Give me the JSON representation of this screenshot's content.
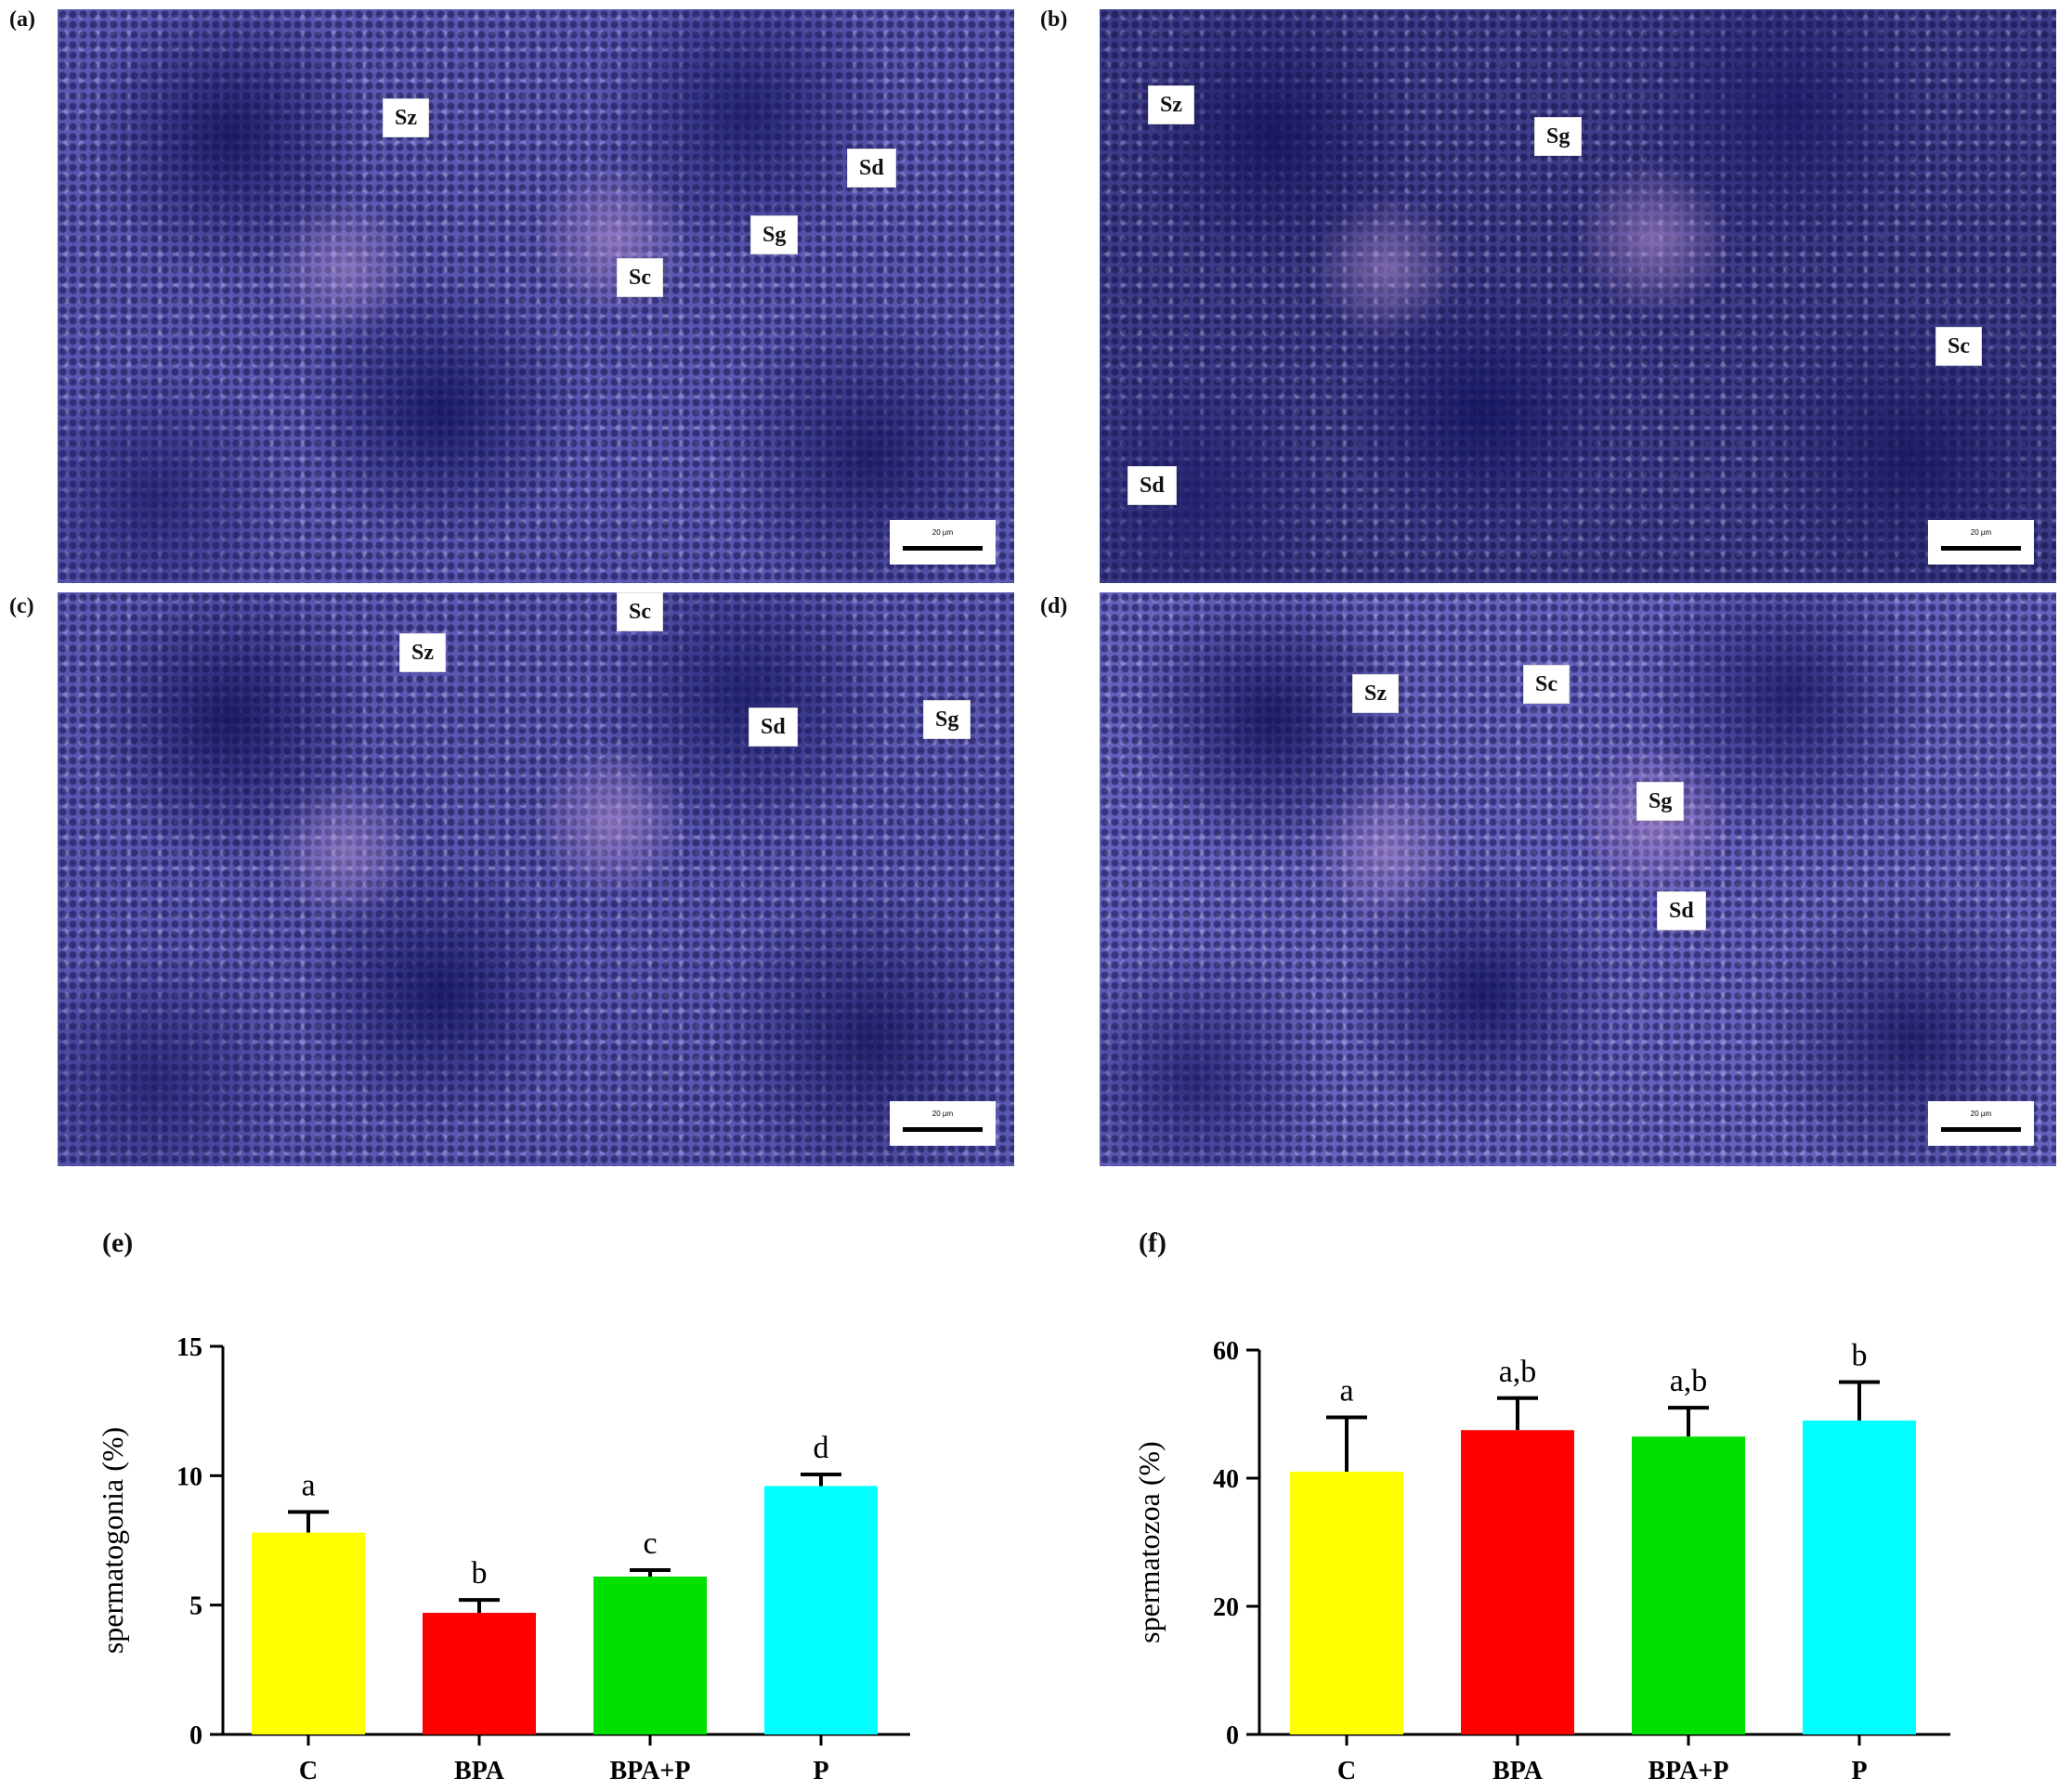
{
  "panels": [
    {
      "letter": "(a)",
      "labels": [
        "Sz",
        "Sd",
        "Sg",
        "Sc"
      ],
      "scale": "20 µm"
    },
    {
      "letter": "(b)",
      "labels": [
        "Sz",
        "Sg",
        "Sc",
        "Sd"
      ],
      "scale": "20 µm"
    },
    {
      "letter": "(c)",
      "labels": [
        "Sc",
        "Sz",
        "Sd",
        "Sg"
      ],
      "scale": "20 µm"
    },
    {
      "letter": "(d)",
      "labels": [
        "Sz",
        "Sc",
        "Sg",
        "Sd"
      ],
      "scale": "20 µm"
    }
  ],
  "chart_letters": {
    "e": "(e)",
    "f": "(f)"
  },
  "colors": {
    "C": "#ffff00",
    "BPA": "#ff0000",
    "BPA+P": "#00e000",
    "P": "#00ffff"
  },
  "chart_data": [
    {
      "type": "bar",
      "categories": [
        "C",
        "BPA",
        "BPA+P",
        "P"
      ],
      "values": [
        7.8,
        4.7,
        6.1,
        9.6
      ],
      "errors": [
        0.8,
        0.5,
        0.25,
        0.45
      ],
      "letters": [
        "a",
        "b",
        "c",
        "d"
      ],
      "xlabel": "",
      "ylabel": "spermatogonia (%)",
      "ylim": [
        0,
        15
      ],
      "yticks": [
        0,
        5,
        10,
        15
      ]
    },
    {
      "type": "bar",
      "categories": [
        "C",
        "BPA",
        "BPA+P",
        "P"
      ],
      "values": [
        41,
        47.5,
        46.5,
        49
      ],
      "errors": [
        8.5,
        5,
        4.5,
        6
      ],
      "letters": [
        "a",
        "a,b",
        "a,b",
        "b"
      ],
      "xlabel": "",
      "ylabel": "spermatozoa (%)",
      "ylim": [
        0,
        60
      ],
      "yticks": [
        0,
        20,
        40,
        60
      ]
    }
  ]
}
